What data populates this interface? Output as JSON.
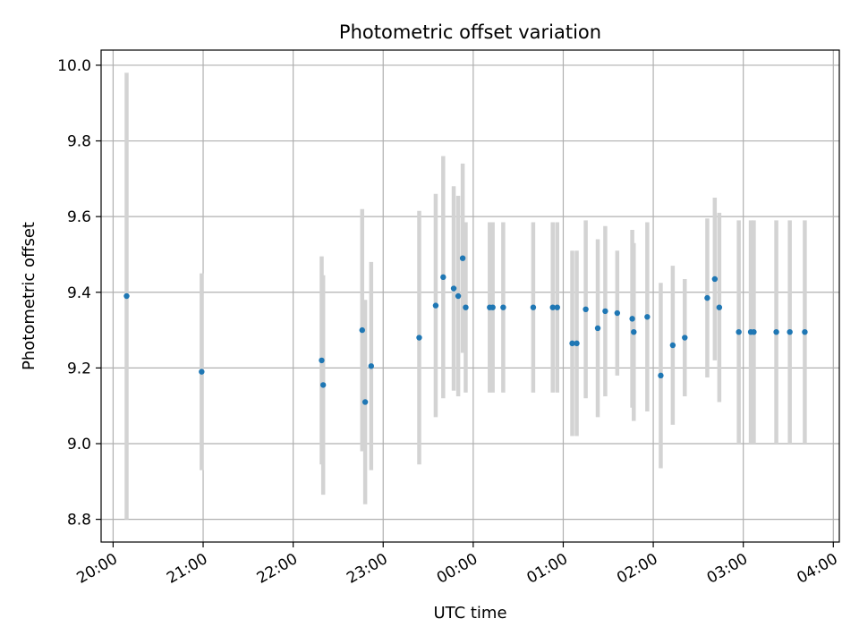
{
  "chart_data": {
    "type": "scatter",
    "title": "Photometric offset variation",
    "xlabel": "UTC time",
    "ylabel": "Photometric offset",
    "grid": true,
    "x_tick_labels": [
      "20:00",
      "21:00",
      "22:00",
      "23:00",
      "00:00",
      "01:00",
      "02:00",
      "03:00",
      "04:00"
    ],
    "y_ticks": [
      8.8,
      9.0,
      9.2,
      9.4,
      9.6,
      9.8,
      10.0
    ],
    "ylim": [
      8.74,
      10.04
    ],
    "xlim": [
      "19:52",
      "04:04"
    ],
    "colors": {
      "points": "#1f77b4",
      "error_bars": "#d3d3d3",
      "grid": "#b0b0b0"
    },
    "series": [
      {
        "x": [
          "20:09",
          "20:59",
          "22:19",
          "22:20",
          "22:46",
          "22:48",
          "22:52",
          "23:24",
          "23:35",
          "23:40",
          "23:47",
          "23:50",
          "23:53",
          "23:55",
          "00:11",
          "00:13",
          "00:20",
          "00:40",
          "00:53",
          "00:56",
          "01:06",
          "01:09",
          "01:15",
          "01:23",
          "01:28",
          "01:36",
          "01:46",
          "01:47",
          "01:56",
          "02:05",
          "02:13",
          "02:21",
          "02:36",
          "02:41",
          "02:44",
          "02:57",
          "03:05",
          "03:07",
          "03:22",
          "03:31",
          "03:41"
        ],
        "y": [
          9.39,
          9.19,
          9.22,
          9.155,
          9.3,
          9.11,
          9.205,
          9.28,
          9.365,
          9.44,
          9.41,
          9.39,
          9.49,
          9.36,
          9.36,
          9.36,
          9.36,
          9.36,
          9.36,
          9.36,
          9.265,
          9.265,
          9.355,
          9.305,
          9.35,
          9.345,
          9.33,
          9.295,
          9.335,
          9.18,
          9.26,
          9.28,
          9.385,
          9.435,
          9.36,
          9.295,
          9.295,
          9.295,
          9.295,
          9.295,
          9.295
        ],
        "yerr": [
          0.59,
          0.26,
          0.275,
          0.29,
          0.32,
          0.27,
          0.275,
          0.335,
          0.295,
          0.32,
          0.27,
          0.265,
          0.25,
          0.225,
          0.225,
          0.225,
          0.225,
          0.225,
          0.225,
          0.225,
          0.245,
          0.245,
          0.235,
          0.235,
          0.225,
          0.165,
          0.235,
          0.235,
          0.25,
          0.245,
          0.21,
          0.155,
          0.21,
          0.215,
          0.25,
          0.295,
          0.295,
          0.295,
          0.295,
          0.295,
          0.295
        ]
      }
    ]
  }
}
